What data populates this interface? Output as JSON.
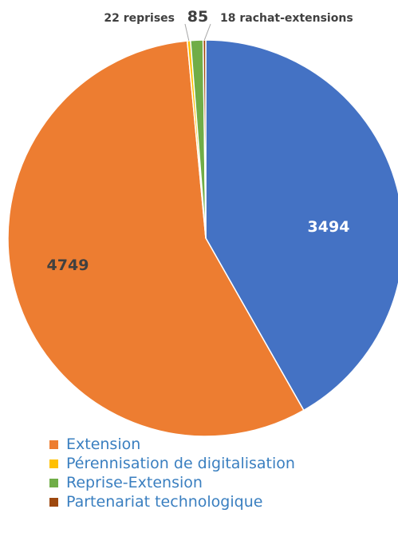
{
  "chart_data": {
    "type": "pie",
    "slices": [
      {
        "label": "",
        "value": 3494,
        "color": "#4472c4",
        "data_label": "3494"
      },
      {
        "label": "Extension",
        "value": 4749,
        "color": "#ed7d31",
        "data_label": "4749"
      },
      {
        "label": "Pérennisation de digitalisation",
        "value": 22,
        "color": "#ffc000",
        "data_label": "22 reprises"
      },
      {
        "label": "Reprise-Extension",
        "value": 85,
        "color": "#70ad47",
        "data_label": "85"
      },
      {
        "label": "Partenariat technologique",
        "value": 18,
        "color": "#9e480e",
        "data_label": "18 rachat-extensions"
      }
    ],
    "legend": [
      {
        "label": "Extension",
        "color": "#ed7d31"
      },
      {
        "label": "Pérennisation de digitalisation",
        "color": "#ffc000"
      },
      {
        "label": "Reprise-Extension",
        "color": "#70ad47"
      },
      {
        "label": "Partenariat technologique",
        "color": "#9e480e"
      }
    ],
    "legend_position": "bottom"
  }
}
